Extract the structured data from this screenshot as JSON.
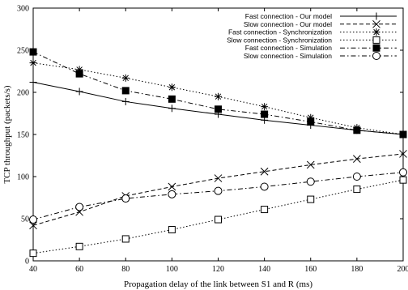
{
  "chart_data": {
    "type": "line",
    "title": "",
    "xlabel": "Propagation delay of the link between S1 and R (ms)",
    "ylabel": "TCP throughput (packets/s)",
    "xlim": [
      40,
      200
    ],
    "ylim": [
      0,
      300
    ],
    "x_ticks": [
      40,
      60,
      80,
      100,
      120,
      140,
      160,
      180,
      200
    ],
    "y_ticks": [
      0,
      50,
      100,
      150,
      200,
      250,
      300
    ],
    "grid": false,
    "legend_position": "top-right",
    "x": [
      40,
      60,
      80,
      100,
      120,
      140,
      160,
      180,
      200
    ],
    "series": [
      {
        "name": "Fast connection - Our model",
        "line": "solid",
        "marker": "plus",
        "values": [
          212,
          201,
          189,
          181,
          174,
          167,
          161,
          155,
          150
        ]
      },
      {
        "name": "Slow connection - Our model",
        "line": "dashed",
        "marker": "x",
        "values": [
          42,
          58,
          77,
          88,
          98,
          106,
          114,
          121,
          127
        ]
      },
      {
        "name": "Fast connection - Synchronization",
        "line": "dotted",
        "marker": "asterisk",
        "values": [
          235,
          227,
          217,
          206,
          195,
          183,
          170,
          158,
          150
        ]
      },
      {
        "name": "Slow connection - Synchronization",
        "line": "dotted",
        "marker": "open-square",
        "values": [
          9,
          17,
          26,
          37,
          49,
          61,
          73,
          85,
          96
        ]
      },
      {
        "name": "Fast connection - Simulation",
        "line": "dashdot",
        "marker": "filled-square",
        "values": [
          248,
          222,
          202,
          192,
          180,
          174,
          165,
          155,
          150
        ]
      },
      {
        "name": "Slow connection - Simulation",
        "line": "dashdot",
        "marker": "open-circle",
        "values": [
          49,
          64,
          74,
          79,
          83,
          88,
          94,
          100,
          105
        ]
      }
    ]
  }
}
